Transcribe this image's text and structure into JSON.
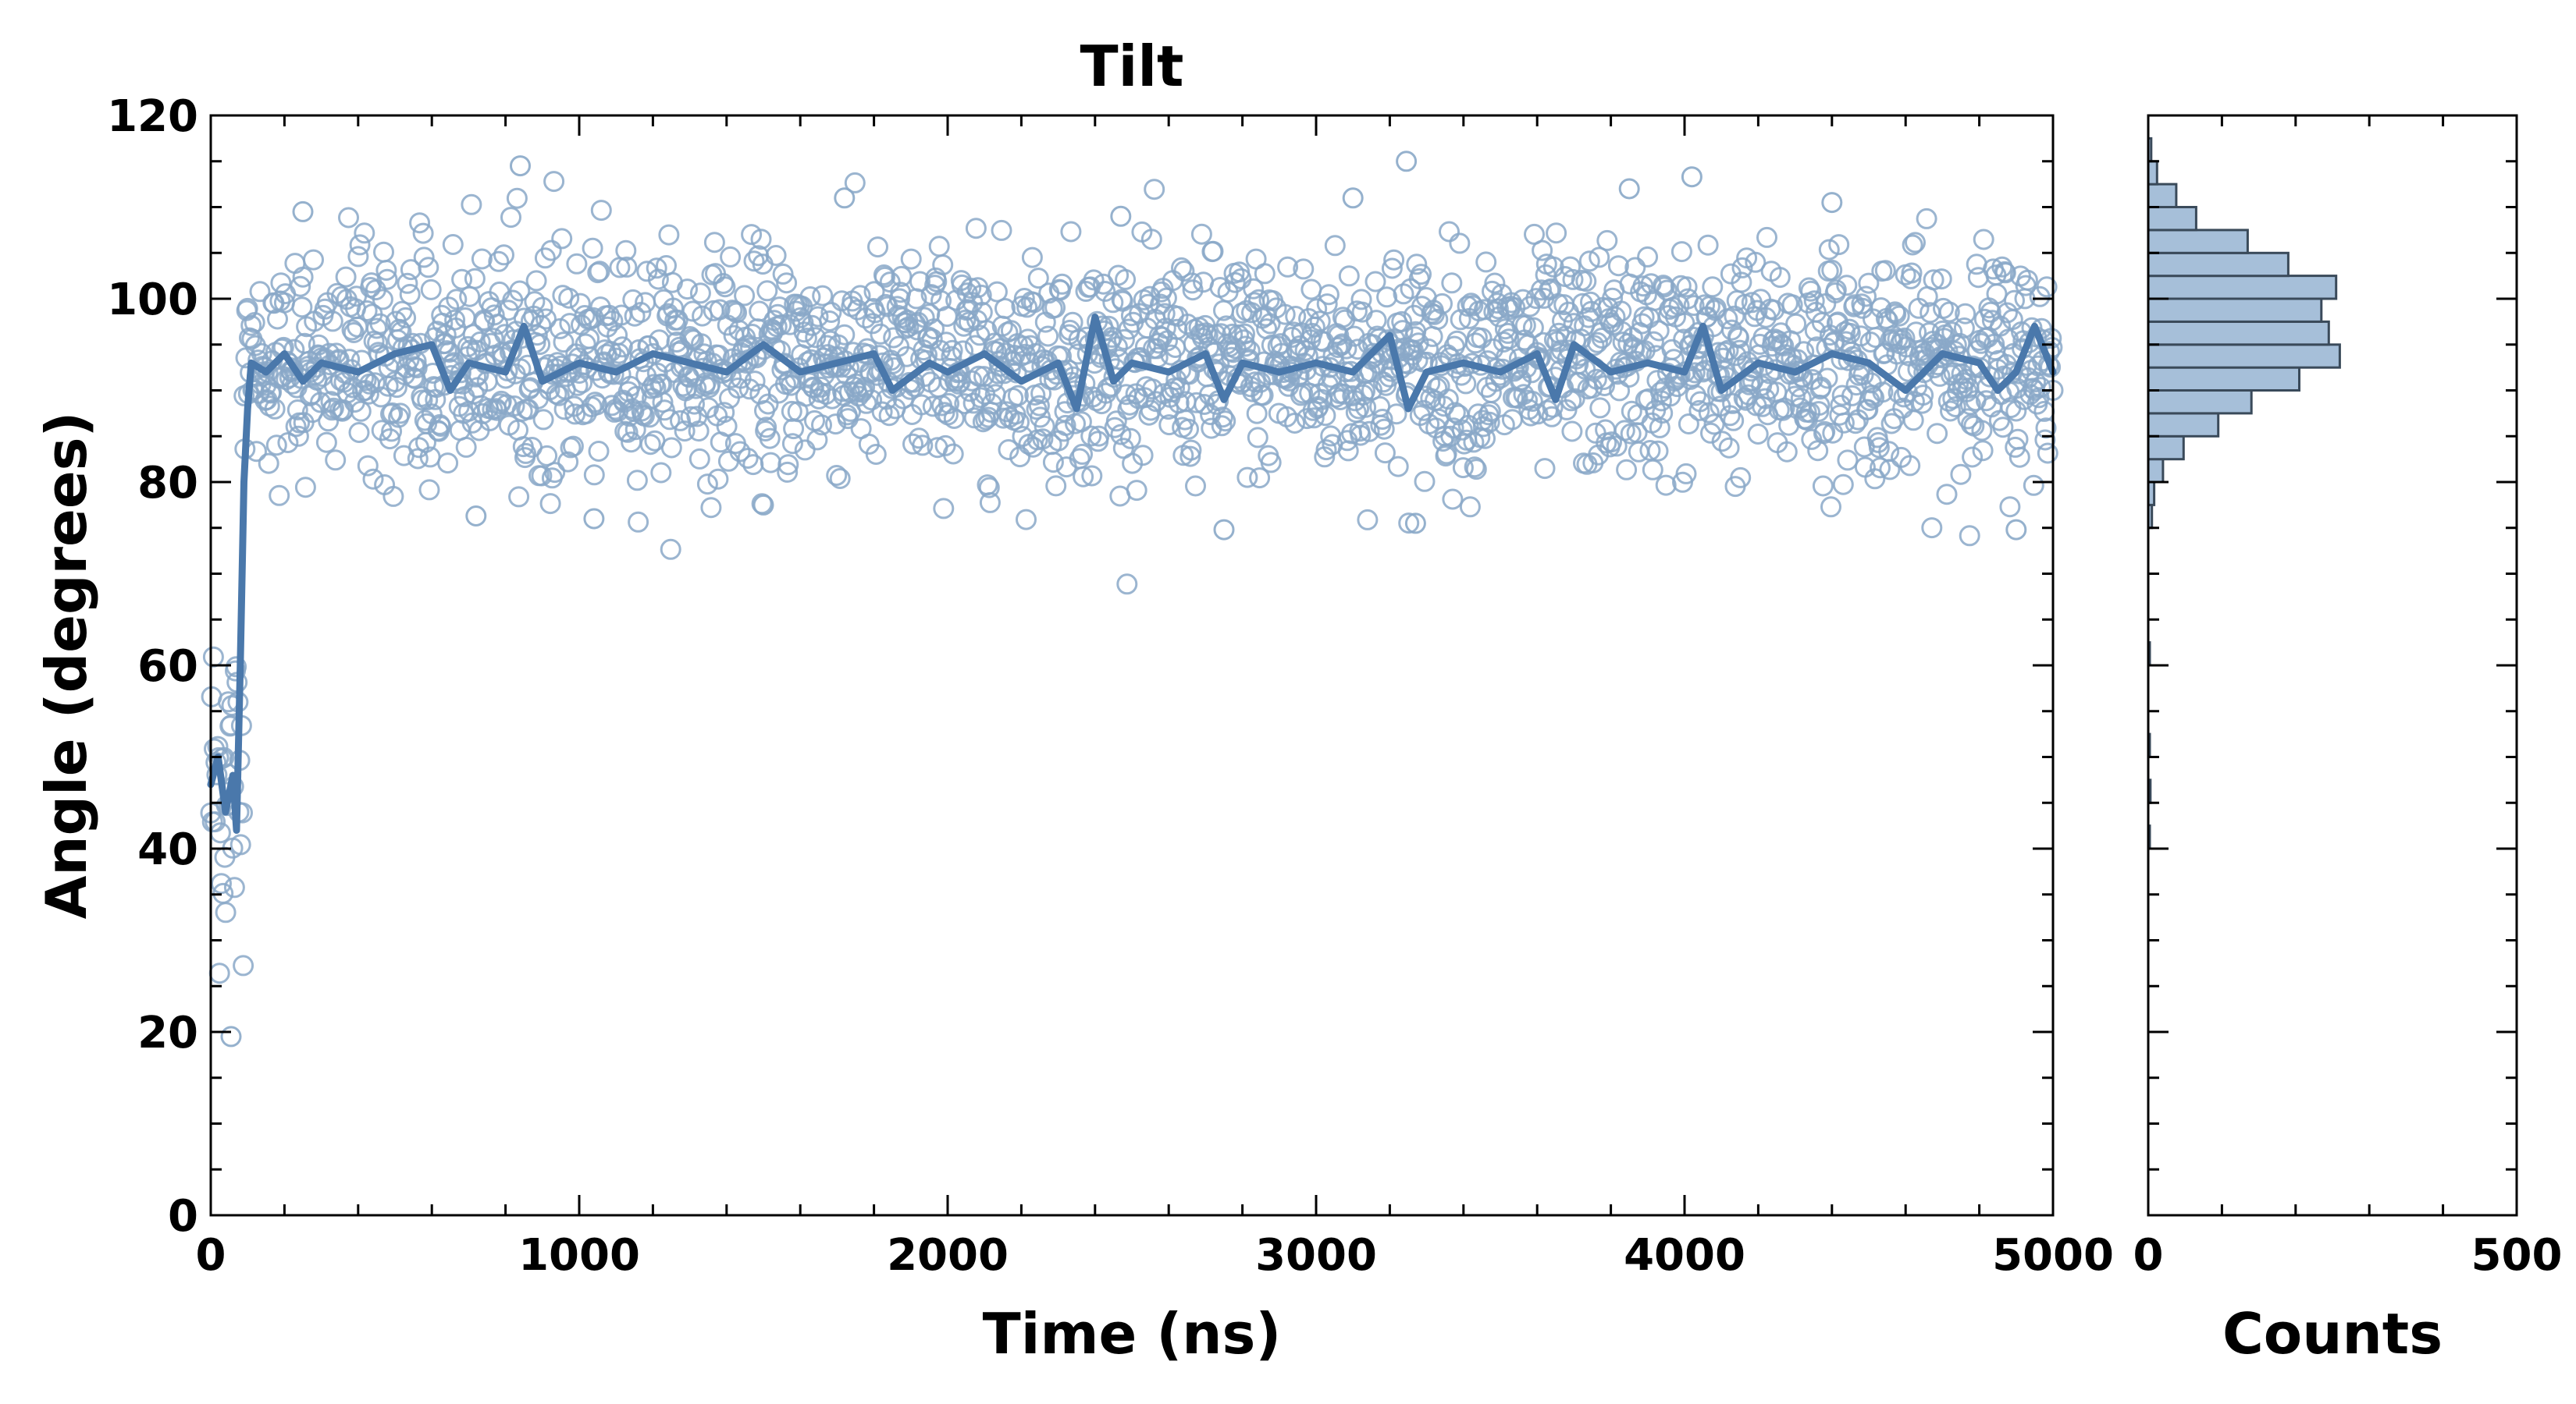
{
  "chart_data": {
    "type": "scatter",
    "title": "Tilt",
    "main": {
      "xlabel": "Time (ns)",
      "ylabel": "Angle (degrees)",
      "xlim": [
        0,
        5000
      ],
      "ylim": [
        0,
        120
      ],
      "xticks": [
        0,
        1000,
        2000,
        3000,
        4000,
        5000
      ],
      "yticks": [
        0,
        20,
        40,
        60,
        80,
        100,
        120
      ],
      "grid": false,
      "scatter_color": "#8aa8c8",
      "line_color": "#4a78ab",
      "scatter_summary": {
        "n_points": 2100,
        "initial_segment": {
          "x_range": [
            0,
            90
          ],
          "center": 47,
          "spread": 10
        },
        "equilibrium": {
          "x_range": [
            90,
            5000
          ],
          "center": 93,
          "spread": 6
        }
      },
      "outliers": [
        {
          "x": 55,
          "y": 19.5
        },
        {
          "x": 840,
          "y": 114.5
        },
        {
          "x": 3245,
          "y": 115
        },
        {
          "x": 3270,
          "y": 75.5
        },
        {
          "x": 2750,
          "y": 74.8
        },
        {
          "x": 4900,
          "y": 74.8
        },
        {
          "x": 720,
          "y": 76.3
        },
        {
          "x": 1040,
          "y": 76
        },
        {
          "x": 1500,
          "y": 77.5
        },
        {
          "x": 1720,
          "y": 111
        },
        {
          "x": 250,
          "y": 109.5
        },
        {
          "x": 4020,
          "y": 113.3
        },
        {
          "x": 3850,
          "y": 112
        },
        {
          "x": 2470,
          "y": 109
        },
        {
          "x": 3100,
          "y": 111
        },
        {
          "x": 4400,
          "y": 110.5
        }
      ],
      "running_average": [
        {
          "x": 0,
          "y": 47
        },
        {
          "x": 20,
          "y": 50
        },
        {
          "x": 40,
          "y": 44
        },
        {
          "x": 60,
          "y": 48
        },
        {
          "x": 70,
          "y": 42
        },
        {
          "x": 80,
          "y": 60
        },
        {
          "x": 90,
          "y": 80
        },
        {
          "x": 100,
          "y": 88
        },
        {
          "x": 110,
          "y": 93
        },
        {
          "x": 150,
          "y": 92
        },
        {
          "x": 200,
          "y": 94
        },
        {
          "x": 250,
          "y": 91
        },
        {
          "x": 300,
          "y": 93
        },
        {
          "x": 400,
          "y": 92
        },
        {
          "x": 500,
          "y": 94
        },
        {
          "x": 600,
          "y": 95
        },
        {
          "x": 650,
          "y": 90
        },
        {
          "x": 700,
          "y": 93
        },
        {
          "x": 800,
          "y": 92
        },
        {
          "x": 850,
          "y": 97
        },
        {
          "x": 900,
          "y": 91
        },
        {
          "x": 1000,
          "y": 93
        },
        {
          "x": 1100,
          "y": 92
        },
        {
          "x": 1200,
          "y": 94
        },
        {
          "x": 1300,
          "y": 93
        },
        {
          "x": 1400,
          "y": 92
        },
        {
          "x": 1500,
          "y": 95
        },
        {
          "x": 1600,
          "y": 92
        },
        {
          "x": 1700,
          "y": 93
        },
        {
          "x": 1800,
          "y": 94
        },
        {
          "x": 1850,
          "y": 90
        },
        {
          "x": 1950,
          "y": 93
        },
        {
          "x": 2000,
          "y": 92
        },
        {
          "x": 2100,
          "y": 94
        },
        {
          "x": 2200,
          "y": 91
        },
        {
          "x": 2300,
          "y": 93
        },
        {
          "x": 2350,
          "y": 88
        },
        {
          "x": 2400,
          "y": 98
        },
        {
          "x": 2450,
          "y": 91
        },
        {
          "x": 2500,
          "y": 93
        },
        {
          "x": 2600,
          "y": 92
        },
        {
          "x": 2700,
          "y": 94
        },
        {
          "x": 2750,
          "y": 89
        },
        {
          "x": 2800,
          "y": 93
        },
        {
          "x": 2900,
          "y": 92
        },
        {
          "x": 3000,
          "y": 93
        },
        {
          "x": 3100,
          "y": 92
        },
        {
          "x": 3200,
          "y": 96
        },
        {
          "x": 3250,
          "y": 88
        },
        {
          "x": 3300,
          "y": 92
        },
        {
          "x": 3400,
          "y": 93
        },
        {
          "x": 3500,
          "y": 92
        },
        {
          "x": 3600,
          "y": 94
        },
        {
          "x": 3650,
          "y": 89
        },
        {
          "x": 3700,
          "y": 95
        },
        {
          "x": 3800,
          "y": 92
        },
        {
          "x": 3900,
          "y": 93
        },
        {
          "x": 4000,
          "y": 92
        },
        {
          "x": 4050,
          "y": 97
        },
        {
          "x": 4100,
          "y": 90
        },
        {
          "x": 4200,
          "y": 93
        },
        {
          "x": 4300,
          "y": 92
        },
        {
          "x": 4400,
          "y": 94
        },
        {
          "x": 4500,
          "y": 93
        },
        {
          "x": 4600,
          "y": 90
        },
        {
          "x": 4700,
          "y": 94
        },
        {
          "x": 4800,
          "y": 93
        },
        {
          "x": 4850,
          "y": 90
        },
        {
          "x": 4900,
          "y": 92
        },
        {
          "x": 4950,
          "y": 97
        },
        {
          "x": 5000,
          "y": 92
        }
      ]
    },
    "histogram": {
      "type": "bar",
      "orientation": "horizontal",
      "xlabel": "Counts",
      "xlim": [
        0,
        500
      ],
      "xticks": [
        0,
        500
      ],
      "bar_color": "#a6bfd9",
      "edge_color": "#3a4a5a",
      "bin_width": 2.5,
      "bins": [
        {
          "y_start": 75,
          "count": 5
        },
        {
          "y_start": 77.5,
          "count": 8
        },
        {
          "y_start": 80,
          "count": 20
        },
        {
          "y_start": 82.5,
          "count": 48
        },
        {
          "y_start": 85,
          "count": 95
        },
        {
          "y_start": 87.5,
          "count": 140
        },
        {
          "y_start": 90,
          "count": 205
        },
        {
          "y_start": 92.5,
          "count": 260
        },
        {
          "y_start": 95,
          "count": 245
        },
        {
          "y_start": 97.5,
          "count": 235
        },
        {
          "y_start": 100,
          "count": 255
        },
        {
          "y_start": 102.5,
          "count": 190
        },
        {
          "y_start": 105,
          "count": 135
        },
        {
          "y_start": 107.5,
          "count": 65
        },
        {
          "y_start": 110,
          "count": 38
        },
        {
          "y_start": 112.5,
          "count": 12
        },
        {
          "y_start": 115,
          "count": 4
        }
      ],
      "sparse_low_bins": [
        {
          "y_start": 40,
          "count": 2
        },
        {
          "y_start": 45,
          "count": 3
        },
        {
          "y_start": 50,
          "count": 2
        },
        {
          "y_start": 60,
          "count": 2
        }
      ]
    }
  }
}
